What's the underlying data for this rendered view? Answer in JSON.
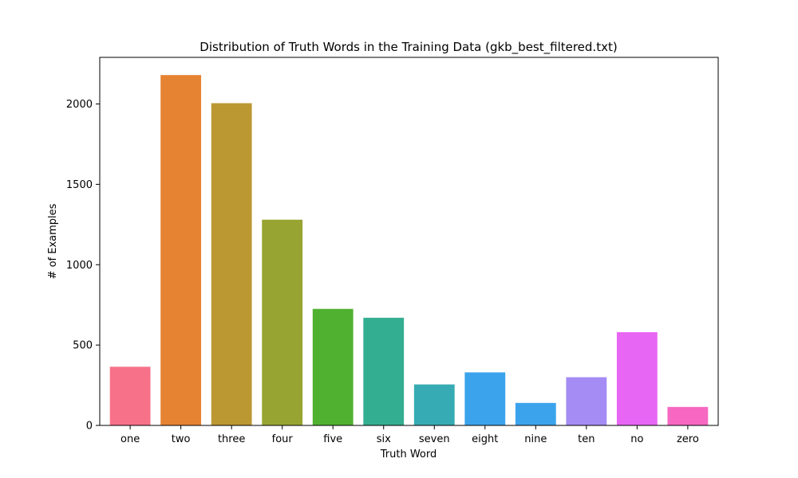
{
  "chart_data": {
    "type": "bar",
    "title": "Distribution of Truth Words in the Training Data (gkb_best_filtered.txt)",
    "xlabel": "Truth Word",
    "ylabel": "# of Examples",
    "categories": [
      "one",
      "two",
      "three",
      "four",
      "five",
      "six",
      "seven",
      "eight",
      "nine",
      "ten",
      "no",
      "zero"
    ],
    "values": [
      365,
      2180,
      2005,
      1280,
      725,
      670,
      255,
      330,
      140,
      300,
      580,
      115
    ],
    "colors": [
      "#f77189",
      "#e68332",
      "#bb9832",
      "#97a431",
      "#50b131",
      "#34ae91",
      "#37abb4",
      "#3ba3ec",
      "#3ba3ec",
      "#a48cf4",
      "#e866f4",
      "#f668c2"
    ],
    "yticks": [
      0,
      500,
      1000,
      1500,
      2000
    ],
    "ylim": [
      0,
      2290
    ],
    "grid": false,
    "legend": "none"
  }
}
